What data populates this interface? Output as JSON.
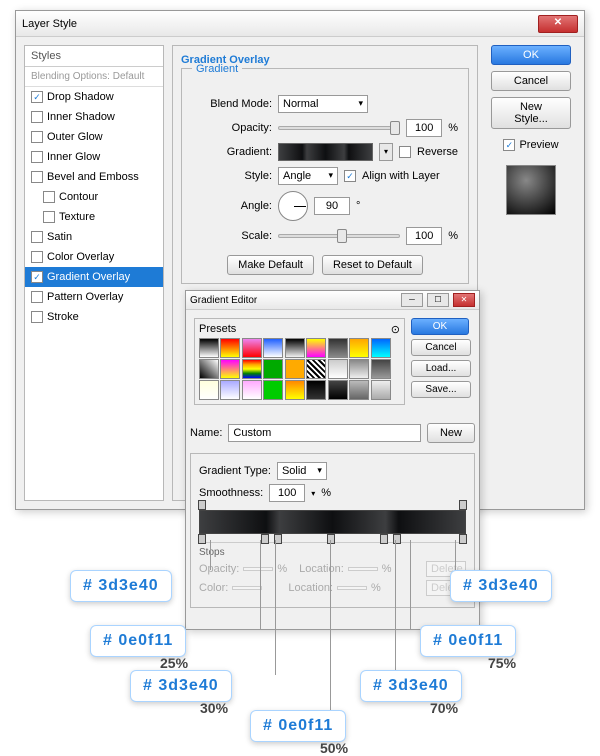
{
  "main": {
    "title": "Layer Style",
    "styles_header": "Styles",
    "blending_sub": "Blending Options: Default",
    "items": [
      {
        "label": "Drop Shadow",
        "checked": true,
        "indent": false
      },
      {
        "label": "Inner Shadow",
        "checked": false,
        "indent": false
      },
      {
        "label": "Outer Glow",
        "checked": false,
        "indent": false
      },
      {
        "label": "Inner Glow",
        "checked": false,
        "indent": false
      },
      {
        "label": "Bevel and Emboss",
        "checked": false,
        "indent": false
      },
      {
        "label": "Contour",
        "checked": false,
        "indent": true
      },
      {
        "label": "Texture",
        "checked": false,
        "indent": true
      },
      {
        "label": "Satin",
        "checked": false,
        "indent": false
      },
      {
        "label": "Color Overlay",
        "checked": false,
        "indent": false
      },
      {
        "label": "Gradient Overlay",
        "checked": true,
        "indent": false,
        "selected": true
      },
      {
        "label": "Pattern Overlay",
        "checked": false,
        "indent": false
      },
      {
        "label": "Stroke",
        "checked": false,
        "indent": false
      }
    ],
    "section_title": "Gradient Overlay",
    "fieldset_label": "Gradient",
    "blend_mode_lbl": "Blend Mode:",
    "blend_mode_val": "Normal",
    "opacity_lbl": "Opacity:",
    "opacity_val": "100",
    "pct": "%",
    "gradient_lbl": "Gradient:",
    "reverse_lbl": "Reverse",
    "style_lbl": "Style:",
    "style_val": "Angle",
    "align_lbl": "Align with Layer",
    "angle_lbl": "Angle:",
    "angle_val": "90",
    "deg": "°",
    "scale_lbl": "Scale:",
    "scale_val": "100",
    "make_default": "Make Default",
    "reset_default": "Reset to Default",
    "ok": "OK",
    "cancel": "Cancel",
    "new_style": "New Style...",
    "preview": "Preview"
  },
  "ge": {
    "title": "Gradient Editor",
    "presets_lbl": "Presets",
    "ok": "OK",
    "cancel": "Cancel",
    "load": "Load...",
    "save": "Save...",
    "name_lbl": "Name:",
    "name_val": "Custom",
    "new": "New",
    "grad_type_lbl": "Gradient Type:",
    "grad_type_val": "Solid",
    "smooth_lbl": "Smoothness:",
    "smooth_val": "100",
    "pct": "%",
    "stops_lbl": "Stops",
    "opacity_lbl": "Opacity:",
    "location_lbl": "Location:",
    "delete_lbl": "Delete",
    "color_lbl": "Color:",
    "preset_colors": [
      "linear-gradient(#000,#fff)",
      "linear-gradient(red,yellow)",
      "linear-gradient(violet,red)",
      "linear-gradient(#2060ff,#fff)",
      "linear-gradient(#000,transparent)",
      "linear-gradient(#ff0,#f0f)",
      "linear-gradient(#333,#888)",
      "linear-gradient(orange,#ff0)",
      "linear-gradient(#06f,#0ff)",
      "linear-gradient(45deg,#000,#fff)",
      "linear-gradient(#f0f,#ff0)",
      "linear-gradient(red,orange,yellow,green,blue)",
      "#0a0",
      "#fa0",
      "repeating-linear-gradient(45deg,#000,#000 2px,#fff 2px,#fff 4px)",
      "linear-gradient(#ccc,#fff)",
      "linear-gradient(#888,#eee)",
      "linear-gradient(#444,#999)",
      "linear-gradient(#ffd,#fff)",
      "linear-gradient(#aaf,#fff)",
      "linear-gradient(#faf,#fff)",
      "#0c0",
      "linear-gradient(#f80,#ff0)",
      "linear-gradient(#000,#333)",
      "linear-gradient(#444,#000)",
      "linear-gradient(#bbb,#666)",
      "linear-gradient(#eee,#aaa)"
    ]
  },
  "callouts": {
    "c1": "# 3d3e40",
    "c2": "# 3d3e40",
    "c3": "# 0e0f11",
    "c4": "# 0e0f11",
    "c5": "# 3d3e40",
    "c6": "# 3d3e40",
    "c7": "# 0e0f11",
    "p25": "25%",
    "p75": "75%",
    "p30": "30%",
    "p70": "70%",
    "p50": "50%"
  },
  "colors": {
    "accent": "#1e7bd6",
    "callout_text": "#1e7bd6",
    "border": "#999"
  }
}
